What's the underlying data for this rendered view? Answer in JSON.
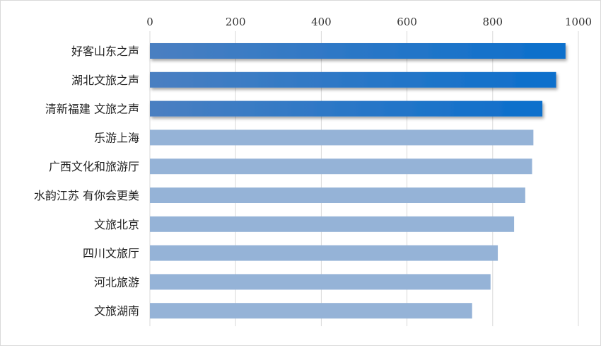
{
  "chart_data": {
    "type": "bar",
    "orientation": "horizontal",
    "categories": [
      "好客山东之声",
      "湖北文旅之声",
      "清新福建 文旅之声",
      "乐游上海",
      "广西文化和旅游厅",
      "水韵江苏 有你会更美",
      "文旅北京",
      "四川文旅厅",
      "河北旅游",
      "文旅湖南"
    ],
    "values": [
      970,
      948,
      916,
      895,
      892,
      876,
      850,
      812,
      795,
      752
    ],
    "highlighted_count": 3,
    "highlight_color": "#2e6fc4",
    "bar_color": "#95b3d7",
    "xlim": [
      0,
      1000
    ],
    "x_ticks": [
      0,
      200,
      400,
      600,
      800,
      1000
    ],
    "x_axis_position": "top",
    "grid": true,
    "legend": "none"
  }
}
